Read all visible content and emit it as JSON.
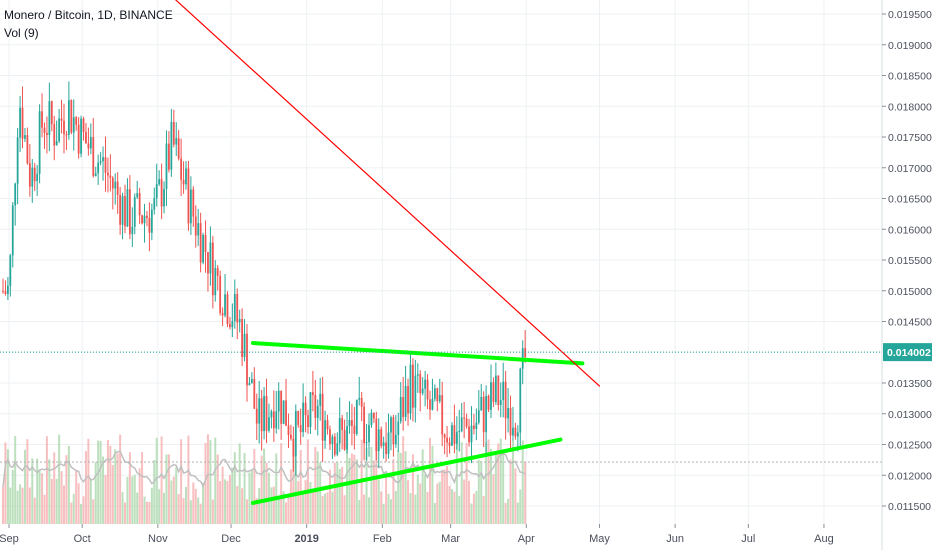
{
  "header": {
    "title": "Monero / Bitcoin, 1D, BINANCE",
    "volume_label": "Vol (9)"
  },
  "colors": {
    "up": "#26a69a",
    "down": "#ef5350",
    "trend_line": "#00ff00",
    "resistance_line": "#ff0000",
    "price_line": "#26a69a",
    "volume_ma": "#c0c0c0"
  },
  "chart_data": {
    "type": "candlestick",
    "symbol": "XMRBTC",
    "interval": "1D",
    "exchange": "BINANCE",
    "x_labels": [
      "Sep",
      "Oct",
      "Nov",
      "Dec",
      "2019",
      "Feb",
      "Mar",
      "Apr",
      "May",
      "Jun",
      "Jul",
      "Aug"
    ],
    "y_ticks": [
      "0.019500",
      "0.019000",
      "0.018500",
      "0.018000",
      "0.017500",
      "0.017000",
      "0.016500",
      "0.016000",
      "0.015500",
      "0.015000",
      "0.014500",
      "0.013500",
      "0.013000",
      "0.012500",
      "0.012000",
      "0.011500"
    ],
    "ylim": [
      0.0111,
      0.0197
    ],
    "last_price": "0.014002",
    "close_series": [
      {
        "date": "2018-09-01",
        "close": 0.015
      },
      {
        "date": "2018-09-05",
        "close": 0.0182
      },
      {
        "date": "2018-09-10",
        "close": 0.0168
      },
      {
        "date": "2018-09-15",
        "close": 0.0178
      },
      {
        "date": "2018-09-20",
        "close": 0.0176
      },
      {
        "date": "2018-09-25",
        "close": 0.018
      },
      {
        "date": "2018-10-01",
        "close": 0.0175
      },
      {
        "date": "2018-10-10",
        "close": 0.017
      },
      {
        "date": "2018-10-20",
        "close": 0.0162
      },
      {
        "date": "2018-10-31",
        "close": 0.0163
      },
      {
        "date": "2018-11-07",
        "close": 0.0174
      },
      {
        "date": "2018-11-15",
        "close": 0.0163
      },
      {
        "date": "2018-11-25",
        "close": 0.0152
      },
      {
        "date": "2018-12-05",
        "close": 0.0144
      },
      {
        "date": "2018-12-12",
        "close": 0.0128
      },
      {
        "date": "2018-12-20",
        "close": 0.0133
      },
      {
        "date": "2018-12-28",
        "close": 0.0126
      },
      {
        "date": "2019-01-05",
        "close": 0.0131
      },
      {
        "date": "2019-01-15",
        "close": 0.0126
      },
      {
        "date": "2019-01-25",
        "close": 0.0129
      },
      {
        "date": "2019-02-05",
        "close": 0.0125
      },
      {
        "date": "2019-02-12",
        "close": 0.0135
      },
      {
        "date": "2019-02-20",
        "close": 0.0131
      },
      {
        "date": "2019-03-01",
        "close": 0.0127
      },
      {
        "date": "2019-03-10",
        "close": 0.0128
      },
      {
        "date": "2019-03-20",
        "close": 0.0133
      },
      {
        "date": "2019-03-28",
        "close": 0.013
      },
      {
        "date": "2019-04-01",
        "close": 0.014
      }
    ],
    "annotations": [
      {
        "type": "trendline",
        "color": "green",
        "from": {
          "date": "2018-12-10",
          "price": 0.01415
        },
        "to": {
          "date": "2019-04-24",
          "price": 0.01382
        }
      },
      {
        "type": "trendline",
        "color": "green",
        "from": {
          "date": "2018-12-10",
          "price": 0.01155
        },
        "to": {
          "date": "2019-04-15",
          "price": 0.01258
        }
      },
      {
        "type": "trendline",
        "color": "red",
        "from": {
          "date": "2018-11-05",
          "price": 0.01985
        },
        "to": {
          "date": "2019-05-01",
          "price": 0.01345
        }
      }
    ],
    "grid": true,
    "legend": "top-left"
  }
}
